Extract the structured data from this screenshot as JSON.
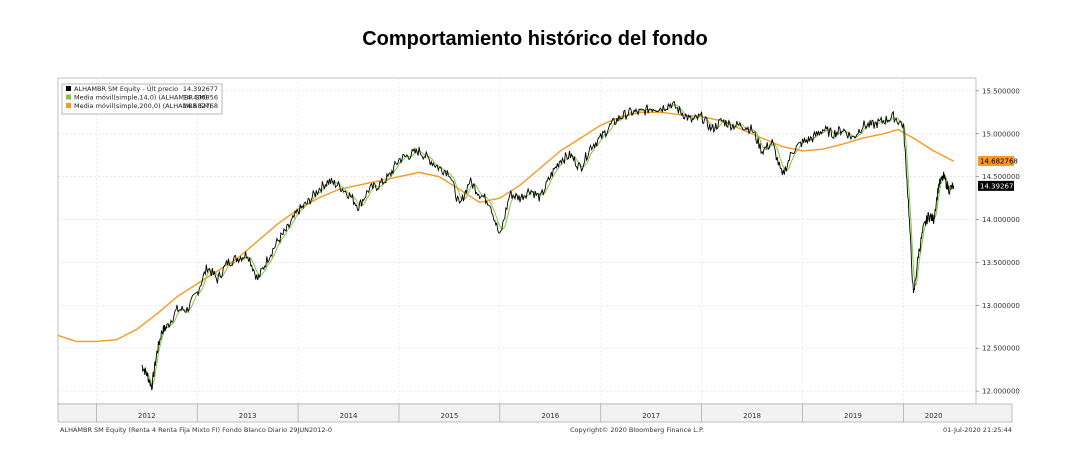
{
  "title": "Comportamiento histórico del fondo",
  "chart_data": {
    "type": "line",
    "ylim": [
      11.85,
      15.65
    ],
    "grid": true,
    "legend_position": "top-left",
    "y_ticks": [
      {
        "value": 12.0,
        "label": "12.000000"
      },
      {
        "value": 12.5,
        "label": "12.500000"
      },
      {
        "value": 13.0,
        "label": "13.000000"
      },
      {
        "value": 13.5,
        "label": "13.500000"
      },
      {
        "value": 14.0,
        "label": "14.000000"
      },
      {
        "value": 14.5,
        "label": "14.500000"
      },
      {
        "value": 15.0,
        "label": "15.000000"
      },
      {
        "value": 15.5,
        "label": "15.500000"
      }
    ],
    "x_ticks": [
      "2012",
      "2013",
      "2014",
      "2015",
      "2016",
      "2017",
      "2018",
      "2019",
      "2020"
    ],
    "series": [
      {
        "name": "ALHAMBR SM Equity - Últ precio",
        "last_value": "14.392677",
        "color": "#000000",
        "x": [
          2012.45,
          2012.5,
          2012.55,
          2012.6,
          2012.65,
          2012.7,
          2012.8,
          2012.9,
          2013.0,
          2013.1,
          2013.2,
          2013.3,
          2013.4,
          2013.5,
          2013.6,
          2013.7,
          2013.8,
          2013.9,
          2014.0,
          2014.1,
          2014.2,
          2014.3,
          2014.4,
          2014.5,
          2014.6,
          2014.7,
          2014.8,
          2014.9,
          2015.0,
          2015.1,
          2015.2,
          2015.3,
          2015.4,
          2015.5,
          2015.6,
          2015.7,
          2015.8,
          2015.9,
          2016.0,
          2016.1,
          2016.2,
          2016.3,
          2016.4,
          2016.5,
          2016.6,
          2016.7,
          2016.8,
          2016.9,
          2017.0,
          2017.1,
          2017.2,
          2017.3,
          2017.4,
          2017.5,
          2017.6,
          2017.7,
          2017.8,
          2017.9,
          2018.0,
          2018.1,
          2018.2,
          2018.3,
          2018.4,
          2018.5,
          2018.6,
          2018.7,
          2018.8,
          2018.9,
          2019.0,
          2019.1,
          2019.2,
          2019.3,
          2019.4,
          2019.5,
          2019.6,
          2019.7,
          2019.8,
          2019.9,
          2020.0,
          2020.05,
          2020.1,
          2020.15,
          2020.2,
          2020.25,
          2020.3,
          2020.35,
          2020.4,
          2020.45,
          2020.5
        ],
        "values": [
          12.3,
          12.2,
          12.05,
          12.45,
          12.7,
          12.75,
          12.95,
          12.95,
          13.15,
          13.45,
          13.3,
          13.5,
          13.55,
          13.6,
          13.3,
          13.55,
          13.75,
          13.9,
          14.1,
          14.2,
          14.35,
          14.45,
          14.4,
          14.3,
          14.15,
          14.35,
          14.4,
          14.5,
          14.7,
          14.75,
          14.8,
          14.7,
          14.6,
          14.55,
          14.15,
          14.45,
          14.3,
          14.2,
          13.8,
          14.3,
          14.25,
          14.35,
          14.25,
          14.5,
          14.7,
          14.75,
          14.6,
          14.85,
          14.95,
          15.1,
          15.2,
          15.25,
          15.25,
          15.3,
          15.3,
          15.35,
          15.25,
          15.15,
          15.2,
          15.05,
          15.15,
          15.1,
          15.1,
          15.05,
          14.8,
          14.9,
          14.5,
          14.8,
          14.9,
          14.95,
          15.05,
          15.0,
          15.05,
          14.95,
          15.1,
          15.1,
          15.15,
          15.2,
          15.1,
          14.2,
          13.1,
          13.6,
          13.9,
          14.05,
          14.0,
          14.4,
          14.5,
          14.35,
          14.39
        ]
      },
      {
        "name": "Media móvil(simple,14,0) (ALHAMBR SM)",
        "last_value": "14.400856",
        "color": "#7fc93a"
      },
      {
        "name": "Media móvil(simple,200,0) (ALHAMBR SM)",
        "last_value": "14.682768",
        "color": "#f59a23",
        "x": [
          2011.62,
          2011.8,
          2012.0,
          2012.2,
          2012.4,
          2012.6,
          2012.8,
          2013.0,
          2013.2,
          2013.4,
          2013.6,
          2013.8,
          2014.0,
          2014.2,
          2014.4,
          2014.6,
          2014.8,
          2015.0,
          2015.2,
          2015.4,
          2015.6,
          2015.8,
          2016.0,
          2016.2,
          2016.4,
          2016.6,
          2016.8,
          2017.0,
          2017.2,
          2017.4,
          2017.6,
          2017.8,
          2018.0,
          2018.2,
          2018.4,
          2018.6,
          2018.8,
          2019.0,
          2019.2,
          2019.4,
          2019.6,
          2019.8,
          2019.95,
          2020.1,
          2020.3,
          2020.5
        ],
        "values": [
          12.65,
          12.58,
          12.58,
          12.6,
          12.72,
          12.9,
          13.1,
          13.25,
          13.4,
          13.55,
          13.75,
          13.95,
          14.12,
          14.25,
          14.35,
          14.4,
          14.45,
          14.5,
          14.55,
          14.5,
          14.35,
          14.2,
          14.25,
          14.4,
          14.6,
          14.8,
          14.95,
          15.1,
          15.2,
          15.25,
          15.25,
          15.22,
          15.2,
          15.15,
          15.05,
          14.95,
          14.85,
          14.8,
          14.82,
          14.88,
          14.95,
          15.0,
          15.05,
          14.95,
          14.8,
          14.68
        ]
      }
    ],
    "price_tags": [
      {
        "value": 14.682768,
        "label": "14.682768",
        "bg": "#f59a23",
        "fg": "#000000"
      },
      {
        "value": 14.392677,
        "label": "14.392677",
        "bg": "#000000",
        "fg": "#ffffff"
      }
    ]
  },
  "footer": {
    "left": "ALHAMBR SM Equity (Renta 4 Renta Fija Mixto FI) Fondo Blanco  Diario 29JUN2012-0",
    "center": "Copyright© 2020 Bloomberg Finance L.P.",
    "right": "01-Jul-2020 21:25:44"
  }
}
